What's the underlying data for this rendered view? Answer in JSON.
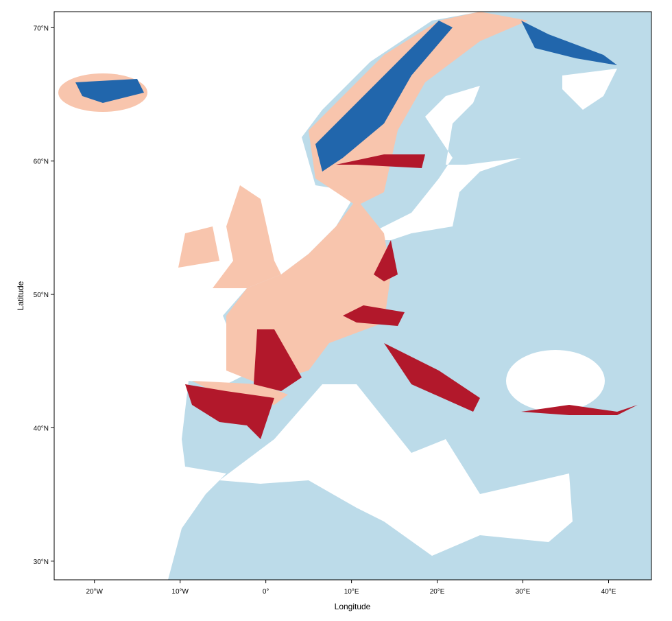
{
  "chart_data": {
    "type": "map",
    "xlabel": "Longitude",
    "ylabel": "Latitude",
    "xlim": [
      -24.7,
      45
    ],
    "ylim": [
      28.6,
      71.2
    ],
    "xticks": [
      {
        "value": -20,
        "label": "20°W"
      },
      {
        "value": -10,
        "label": "10°W"
      },
      {
        "value": 0,
        "label": "0°"
      },
      {
        "value": 10,
        "label": "10°E"
      },
      {
        "value": 20,
        "label": "20°E"
      },
      {
        "value": 30,
        "label": "30°E"
      },
      {
        "value": 40,
        "label": "40°E"
      }
    ],
    "yticks": [
      {
        "value": 30,
        "label": "30°N"
      },
      {
        "value": 40,
        "label": "40°N"
      },
      {
        "value": 50,
        "label": "50°N"
      },
      {
        "value": 60,
        "label": "60°N"
      },
      {
        "value": 70,
        "label": "70°N"
      }
    ]
  }
}
